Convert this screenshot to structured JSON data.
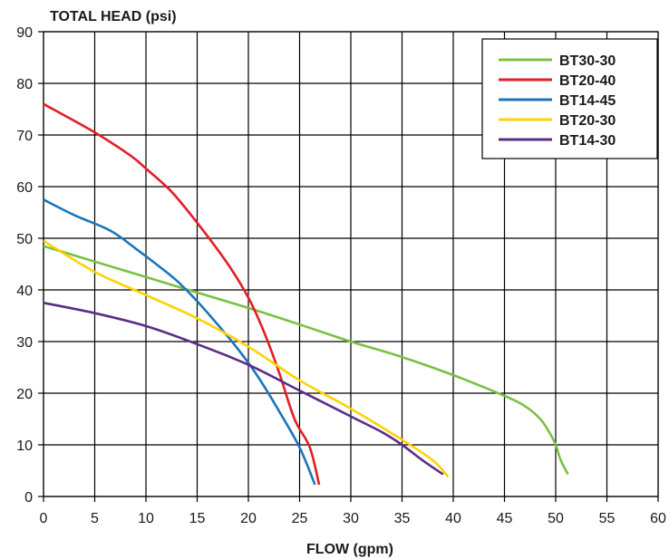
{
  "chart_data": {
    "type": "line",
    "title": "",
    "ylabel": "TOTAL HEAD (psi)",
    "xlabel": "FLOW (gpm)",
    "xlim": [
      0,
      60
    ],
    "ylim": [
      0,
      90
    ],
    "xticks": [
      0,
      5,
      10,
      15,
      20,
      25,
      30,
      35,
      40,
      45,
      50,
      55,
      60
    ],
    "yticks": [
      0,
      10,
      20,
      30,
      40,
      50,
      60,
      70,
      80,
      90
    ],
    "grid": true,
    "legend_position": "top-right",
    "series": [
      {
        "name": "BT30-30",
        "color": "#7ac143",
        "x": [
          0,
          5,
          10,
          15,
          20,
          25,
          30,
          35,
          40,
          45,
          47,
          48.5,
          49.5,
          50,
          50.5,
          51.2
        ],
        "y": [
          48.5,
          45.5,
          42.5,
          39.5,
          36.5,
          33.3,
          30,
          27,
          23.5,
          19.5,
          17.5,
          15,
          12,
          10,
          7,
          4.3
        ]
      },
      {
        "name": "BT20-40",
        "color": "#e31e24",
        "x": [
          0,
          5,
          8.5,
          10,
          12.5,
          15,
          18,
          20,
          21.5,
          23,
          24.5,
          26,
          26.9
        ],
        "y": [
          76,
          70.5,
          66,
          63.5,
          59,
          53,
          45,
          38.5,
          32,
          24,
          15,
          9.5,
          2.3
        ]
      },
      {
        "name": "BT14-45",
        "color": "#1b75bb",
        "x": [
          0,
          3,
          6.5,
          9,
          11,
          13,
          15,
          17,
          19,
          21,
          23,
          25,
          26.5
        ],
        "y": [
          57.5,
          54.5,
          51.5,
          48,
          45,
          41.8,
          37.8,
          33.3,
          28.5,
          23,
          16.5,
          9.5,
          2.3
        ]
      },
      {
        "name": "BT20-30",
        "color": "#ffd200",
        "x": [
          0,
          5,
          10,
          15,
          20,
          25,
          30,
          35,
          38,
          39.5
        ],
        "y": [
          49.5,
          43.5,
          39,
          34.5,
          29,
          22.5,
          17,
          11,
          7,
          3.8
        ]
      },
      {
        "name": "BT14-30",
        "color": "#5b2d86",
        "x": [
          0,
          5,
          10,
          15,
          20,
          25,
          30,
          33,
          35,
          37,
          39
        ],
        "y": [
          37.5,
          35.5,
          33,
          29.5,
          25.5,
          20.5,
          15.5,
          12.5,
          10,
          7,
          4.3
        ]
      }
    ]
  }
}
